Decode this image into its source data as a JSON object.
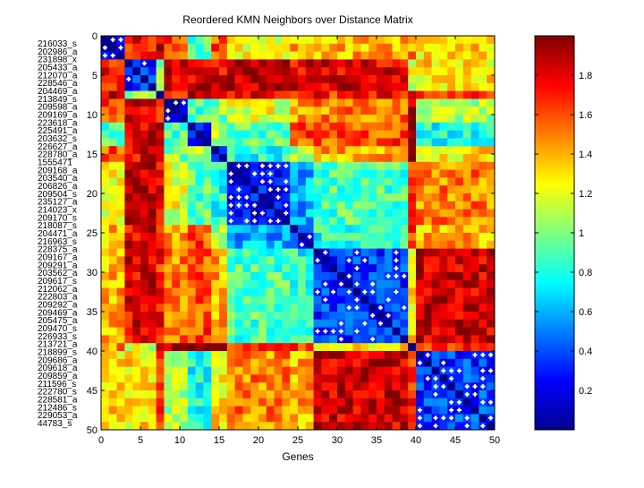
{
  "chart_data": {
    "type": "heatmap",
    "title": "Reordered KMN Neighbors over Distance Matrix",
    "xlabel": "Genes",
    "ylabel": "",
    "xlim": [
      0,
      50
    ],
    "ylim": [
      0,
      50
    ],
    "x_ticks": [
      "0",
      "5",
      "10",
      "15",
      "20",
      "25",
      "30",
      "35",
      "40",
      "45",
      "50"
    ],
    "y_ticks": [
      "0",
      "5",
      "10",
      "15",
      "20",
      "25",
      "30",
      "35",
      "40",
      "45",
      "50"
    ],
    "colormap": "jet",
    "color_range": [
      0,
      2
    ],
    "colorbar_ticks": [
      "0.2",
      "0.4",
      "0.6",
      "0.8",
      "1",
      "1.2",
      "1.4",
      "1.6",
      "1.8"
    ],
    "colorbar_tick_values": [
      0.2,
      0.4,
      0.6,
      0.8,
      1.0,
      1.2,
      1.4,
      1.6,
      1.8
    ],
    "gene_labels": [
      "216033_s",
      "202986_a",
      "231898_x",
      "205433_a",
      "212070_a",
      "228546_a",
      "204469_a",
      "213849_s",
      "209598_a",
      "209169_a",
      "223618_a",
      "225491_a",
      "203632_s",
      "226627_a",
      "228780_a",
      "1555471",
      "209168_a",
      "203540_a",
      "206826_a",
      "209504_s",
      "235127_a",
      "214023_x",
      "209170_s",
      "218087_s",
      "204471_a",
      "216963_s",
      "228375_a",
      "209167_a",
      "209291_a",
      "203562_a",
      "209617_s",
      "212062_a",
      "222803_a",
      "209292_a",
      "209469_a",
      "205475_a",
      "209470_s",
      "226933_s",
      "213721_a",
      "218899_s",
      "209686_a",
      "209618_a",
      "209859_a",
      "211596_s",
      "222780_s",
      "228581_a",
      "212486_s",
      "229053_a",
      "44783_s"
    ],
    "cluster_sizes": [
      3,
      4,
      1,
      3,
      3,
      2,
      8,
      3,
      12,
      1,
      10
    ],
    "cluster_block_means": [
      [
        0.1,
        1.7,
        1.9,
        1.6,
        0.9,
        1.6,
        1.2,
        1.4,
        1.4,
        1.5,
        1.3
      ],
      [
        1.7,
        0.3,
        1.0,
        1.8,
        1.8,
        1.8,
        1.9,
        1.8,
        1.8,
        1.2,
        1.3
      ],
      [
        1.9,
        1.0,
        0.05,
        1.5,
        1.8,
        1.6,
        1.8,
        1.6,
        1.7,
        1.9,
        1.6
      ],
      [
        1.6,
        1.8,
        1.5,
        0.15,
        0.9,
        1.0,
        1.2,
        1.4,
        1.5,
        1.95,
        1.1
      ],
      [
        0.9,
        1.8,
        1.8,
        0.9,
        0.2,
        1.1,
        0.9,
        1.6,
        1.6,
        1.95,
        0.8
      ],
      [
        1.6,
        1.8,
        1.6,
        1.0,
        1.1,
        0.2,
        0.8,
        1.1,
        1.4,
        1.9,
        1.3
      ],
      [
        1.2,
        1.9,
        1.8,
        1.2,
        0.9,
        0.8,
        0.25,
        0.6,
        0.9,
        1.7,
        1.5
      ],
      [
        1.4,
        1.8,
        1.6,
        1.4,
        1.6,
        1.1,
        0.6,
        0.25,
        0.8,
        1.7,
        1.4
      ],
      [
        1.4,
        1.8,
        1.7,
        1.5,
        1.6,
        1.4,
        0.9,
        0.8,
        0.35,
        1.3,
        1.85
      ],
      [
        1.5,
        1.2,
        1.9,
        1.95,
        1.95,
        1.9,
        1.7,
        1.7,
        1.3,
        0.05,
        1.7
      ],
      [
        1.3,
        1.3,
        1.6,
        1.1,
        0.8,
        1.3,
        1.5,
        1.4,
        1.85,
        1.7,
        0.35
      ]
    ],
    "marker": "white plus on KMN neighbor cells",
    "grid": false
  }
}
